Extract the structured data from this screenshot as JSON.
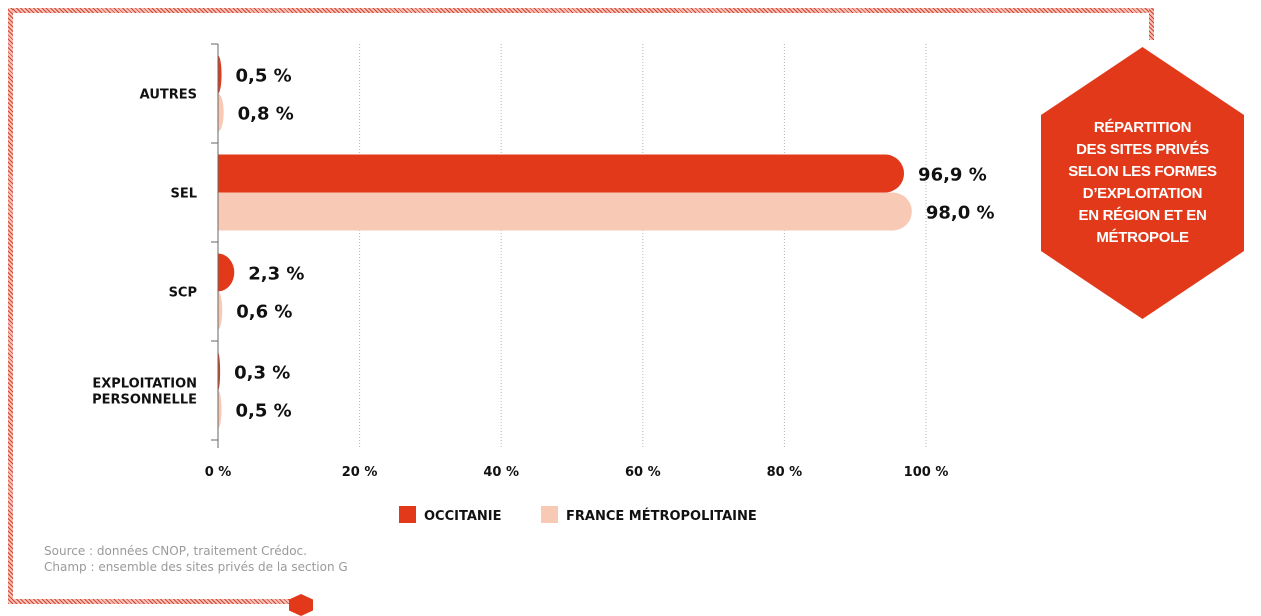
{
  "colors": {
    "occitanie": "#e3391b",
    "france": "#f8c9b4",
    "badge": "#e3391b",
    "text": "#111111",
    "source": "#9a9a9a"
  },
  "badge": {
    "lines": [
      "RÉPARTITION",
      "DES SITES PRIVÉS",
      "SELON LES FORMES",
      "D’EXPLOITATION",
      "EN RÉGION ET EN",
      "MÉTROPOLE"
    ]
  },
  "source": {
    "line1": "Source : données CNOP, traitement Crédoc.",
    "line2": "Champ : ensemble des sites privés de la section G"
  },
  "chart_data": {
    "type": "bar",
    "orientation": "horizontal",
    "categories": [
      [
        "AUTRES"
      ],
      [
        "SEL"
      ],
      [
        "SCP"
      ],
      [
        "EXPLOITATION",
        "PERSONNELLE"
      ]
    ],
    "series": [
      {
        "name": "OCCITANIE",
        "values": [
          0.5,
          96.9,
          2.3,
          0.3
        ],
        "labels": [
          "0,5 %",
          "96,9 %",
          "2,3 %",
          "0,3 %"
        ]
      },
      {
        "name": "FRANCE MÉTROPOLITAINE",
        "values": [
          0.8,
          98.0,
          0.6,
          0.5
        ],
        "labels": [
          "0,8 %",
          "98,0 %",
          "0,6 %",
          "0,5 %"
        ]
      }
    ],
    "xlim": [
      0,
      100
    ],
    "xticks": [
      0,
      20,
      40,
      60,
      80,
      100
    ],
    "xtick_labels": [
      "0 %",
      "20 %",
      "40 %",
      "60 %",
      "80 %",
      "100 %"
    ],
    "grid": "vertical dotted",
    "legend_position": "bottom"
  }
}
